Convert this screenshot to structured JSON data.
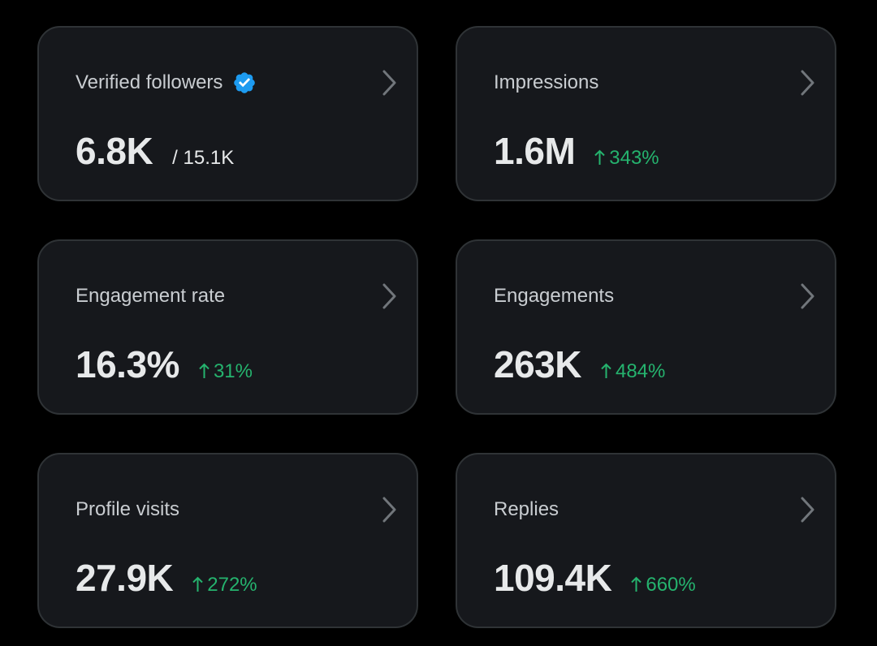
{
  "colors": {
    "background": "#000000",
    "card_background": "#16181c",
    "card_border": "#2f3336",
    "title_text": "#c9cdd1",
    "value_text": "#e7e9ea",
    "positive_change": "#25b36e",
    "verified_badge": "#1d9bf0",
    "chevron": "#71767b"
  },
  "cards": [
    {
      "title": "Verified followers",
      "icon": "verified-badge-icon",
      "value": "6.8K",
      "total": "/ 15.1K"
    },
    {
      "title": "Impressions",
      "value": "1.6M",
      "change": "343%",
      "change_direction": "up"
    },
    {
      "title": "Engagement rate",
      "value": "16.3%",
      "change": "31%",
      "change_direction": "up"
    },
    {
      "title": "Engagements",
      "value": "263K",
      "change": "484%",
      "change_direction": "up"
    },
    {
      "title": "Profile visits",
      "value": "27.9K",
      "change": "272%",
      "change_direction": "up"
    },
    {
      "title": "Replies",
      "value": "109.4K",
      "change": "660%",
      "change_direction": "up"
    }
  ]
}
